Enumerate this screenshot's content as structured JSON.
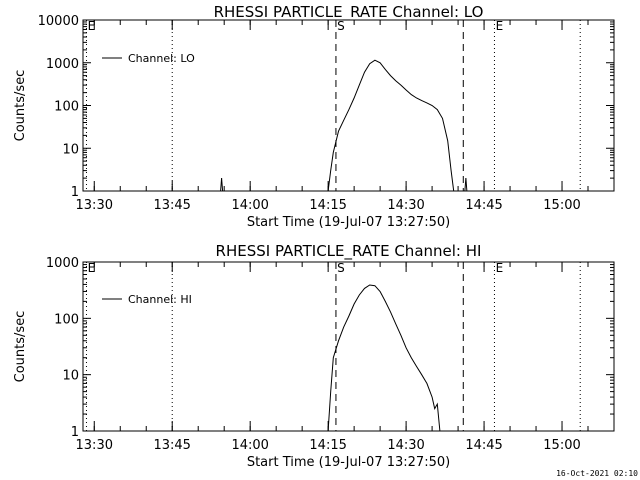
{
  "colors": {
    "background": "#ffffff",
    "foreground": "#000000"
  },
  "footer": {
    "timestamp": "16-Oct-2021 02:10"
  },
  "x_axis": {
    "label": "Start Time (19-Jul-07 13:27:50)",
    "range_minutes": [
      "13:27:50",
      "15:10:00"
    ],
    "ticks": [
      "13:30",
      "13:45",
      "14:00",
      "14:15",
      "14:30",
      "14:45",
      "15:00"
    ]
  },
  "chart_data": [
    {
      "type": "line",
      "title": "RHESSI PARTICLE_RATE Channel: LO",
      "xlabel": "Start Time (19-Jul-07 13:27:50)",
      "ylabel": "Counts/sec",
      "yscale": "log",
      "ylim": [
        1,
        10000
      ],
      "yticks": [
        "1",
        "10",
        "100",
        "1000",
        "10000"
      ],
      "xticks": [
        "13:30",
        "13:45",
        "14:00",
        "14:15",
        "14:30",
        "14:45",
        "15:00"
      ],
      "legend": {
        "entries": [
          "Channel: LO"
        ],
        "placement": "top-left"
      },
      "markers": [
        {
          "time": "13:28:30",
          "label": "E",
          "style": "dotted"
        },
        {
          "time": "13:45:00",
          "label": "",
          "style": "dotted"
        },
        {
          "time": "14:16:30",
          "label": "S",
          "style": "dashed"
        },
        {
          "time": "14:41:00",
          "label": "",
          "style": "dashed"
        },
        {
          "time": "14:47:00",
          "label": "E",
          "style": "dotted"
        },
        {
          "time": "15:03:30",
          "label": "",
          "style": "dotted"
        }
      ],
      "series": [
        {
          "name": "Channel: LO",
          "spikes": [
            {
              "time": "13:54:30",
              "value": 2
            },
            {
              "time": "14:41:30",
              "value": 2
            }
          ],
          "x": [
            "14:15:00",
            "14:15:30",
            "14:16:00",
            "14:17:00",
            "14:18:00",
            "14:19:00",
            "14:20:00",
            "14:21:00",
            "14:22:00",
            "14:23:00",
            "14:24:00",
            "14:25:00",
            "14:26:00",
            "14:27:00",
            "14:28:00",
            "14:29:00",
            "14:30:00",
            "14:31:00",
            "14:32:00",
            "14:33:00",
            "14:34:00",
            "14:35:00",
            "14:36:00",
            "14:37:00",
            "14:38:00",
            "14:38:40",
            "14:39:10"
          ],
          "y": [
            1,
            3,
            8,
            25,
            45,
            80,
            150,
            300,
            600,
            950,
            1150,
            1000,
            700,
            500,
            380,
            300,
            230,
            180,
            150,
            130,
            115,
            100,
            80,
            50,
            15,
            3,
            1
          ]
        }
      ]
    },
    {
      "type": "line",
      "title": "RHESSI PARTICLE_RATE Channel: HI",
      "xlabel": "Start Time (19-Jul-07 13:27:50)",
      "ylabel": "Counts/sec",
      "yscale": "log",
      "ylim": [
        1,
        1000
      ],
      "yticks": [
        "1",
        "10",
        "100",
        "1000"
      ],
      "xticks": [
        "13:30",
        "13:45",
        "14:00",
        "14:15",
        "14:30",
        "14:45",
        "15:00"
      ],
      "legend": {
        "entries": [
          "Channel: HI"
        ],
        "placement": "top-left"
      },
      "markers": [
        {
          "time": "13:28:30",
          "label": "E",
          "style": "dotted"
        },
        {
          "time": "13:45:00",
          "label": "",
          "style": "dotted"
        },
        {
          "time": "14:16:30",
          "label": "S",
          "style": "dashed"
        },
        {
          "time": "14:41:00",
          "label": "",
          "style": "dashed"
        },
        {
          "time": "14:47:00",
          "label": "E",
          "style": "dotted"
        },
        {
          "time": "15:03:30",
          "label": "",
          "style": "dotted"
        }
      ],
      "series": [
        {
          "name": "Channel: HI",
          "spikes": [],
          "x": [
            "14:15:00",
            "14:15:30",
            "14:16:00",
            "14:17:00",
            "14:18:00",
            "14:19:00",
            "14:20:00",
            "14:21:00",
            "14:22:00",
            "14:23:00",
            "14:24:00",
            "14:25:00",
            "14:26:00",
            "14:27:00",
            "14:28:00",
            "14:29:00",
            "14:30:00",
            "14:31:00",
            "14:32:00",
            "14:33:00",
            "14:34:00",
            "14:35:00",
            "14:35:30",
            "14:36:00",
            "14:36:30"
          ],
          "y": [
            1,
            5,
            20,
            40,
            70,
            110,
            180,
            260,
            340,
            390,
            380,
            300,
            200,
            130,
            80,
            50,
            30,
            20,
            14,
            10,
            7,
            4,
            2.5,
            3,
            1
          ]
        }
      ]
    }
  ]
}
